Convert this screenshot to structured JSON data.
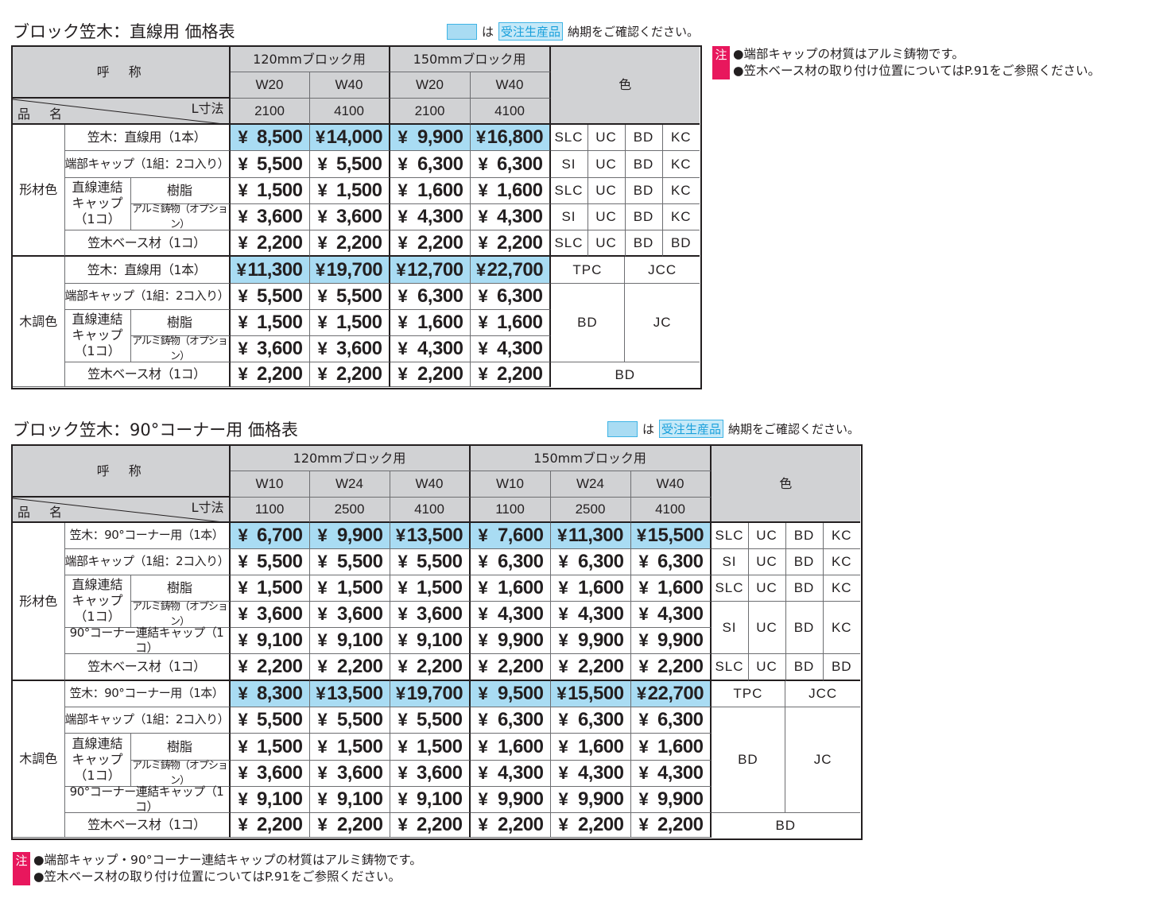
{
  "legend": {
    "is_label": "は",
    "tag_label": "受注生産品",
    "suffix": "納期をご確認ください。",
    "highlight_color": "#a9dcf3",
    "note_mark_color": "#e8175d"
  },
  "table1": {
    "title": "ブロック笠木：直線用 価格表",
    "header": {
      "name_label": "呼　称",
      "product_label": "品　名",
      "length_label": "L寸法",
      "color_label": "色",
      "groups": [
        {
          "label": "120mmブロック用",
          "widths": [
            "W20",
            "W40"
          ],
          "lengths": [
            "2100",
            "4100"
          ]
        },
        {
          "label": "150mmブロック用",
          "widths": [
            "W20",
            "W40"
          ],
          "lengths": [
            "2100",
            "4100"
          ]
        }
      ]
    },
    "sections": [
      {
        "label": "形材色",
        "rows": [
          {
            "name": "笠木：直線用（1本）",
            "prices": [
              "¥",
              "8,500",
              "¥",
              "14,000",
              "¥",
              "9,900",
              "¥",
              "16,800"
            ],
            "colors": [
              "SLC",
              "UC",
              "BD",
              "KC"
            ],
            "highlight": true
          },
          {
            "name": "端部キャップ（1組：2コ入り）",
            "prices": [
              "¥",
              "5,500",
              "¥",
              "5,500",
              "¥",
              "6,300",
              "¥",
              "6,300"
            ],
            "colors": [
              "SI",
              "UC",
              "BD",
              "KC"
            ]
          },
          {
            "name_group": "直線連結\nキャップ\n（1コ）",
            "group_line1": "直線連結",
            "group_line2": "キャップ",
            "group_line3": "（1コ）",
            "name": "樹脂",
            "prices": [
              "¥",
              "1,500",
              "¥",
              "1,500",
              "¥",
              "1,600",
              "¥",
              "1,600"
            ],
            "colors": [
              "SLC",
              "UC",
              "BD",
              "KC"
            ]
          },
          {
            "name": "アルミ鋳物（オプション）",
            "prices": [
              "¥",
              "3,600",
              "¥",
              "3,600",
              "¥",
              "4,300",
              "¥",
              "4,300"
            ],
            "colors": [
              "SI",
              "UC",
              "BD",
              "KC"
            ]
          },
          {
            "name": "笠木ベース材（1コ）",
            "prices": [
              "¥",
              "2,200",
              "¥",
              "2,200",
              "¥",
              "2,200",
              "¥",
              "2,200"
            ],
            "colors": [
              "SLC",
              "UC",
              "BD",
              "BD"
            ]
          }
        ]
      },
      {
        "label": "木調色",
        "rows": [
          {
            "name": "笠木：直線用（1本）",
            "prices": [
              "¥",
              "11,300",
              "¥",
              "19,700",
              "¥",
              "12,700",
              "¥",
              "22,700"
            ],
            "highlight": true
          },
          {
            "name": "端部キャップ（1組：2コ入り）",
            "prices": [
              "¥",
              "5,500",
              "¥",
              "5,500",
              "¥",
              "6,300",
              "¥",
              "6,300"
            ]
          },
          {
            "group_line1": "直線連結",
            "group_line2": "キャップ",
            "group_line3": "（1コ）",
            "name": "樹脂",
            "prices": [
              "¥",
              "1,500",
              "¥",
              "1,500",
              "¥",
              "1,600",
              "¥",
              "1,600"
            ]
          },
          {
            "name": "アルミ鋳物（オプション）",
            "prices": [
              "¥",
              "3,600",
              "¥",
              "3,600",
              "¥",
              "4,300",
              "¥",
              "4,300"
            ]
          },
          {
            "name": "笠木ベース材（1コ）",
            "prices": [
              "¥",
              "2,200",
              "¥",
              "2,200",
              "¥",
              "2,200",
              "¥",
              "2,200"
            ]
          }
        ],
        "colors": {
          "top_left": "TPC",
          "top_right": "JCC",
          "mid_left": "BD",
          "mid_right": "JC",
          "bottom": "BD"
        }
      }
    ],
    "notes": [
      "●端部キャップの材質はアルミ鋳物です。",
      "●笠木ベース材の取り付け位置についてはP.91をご参照ください。"
    ],
    "note_mark": "注"
  },
  "table2": {
    "title": "ブロック笠木：90°コーナー用 価格表",
    "header": {
      "name_label": "呼　称",
      "product_label": "品　名",
      "length_label": "L寸法",
      "color_label": "色",
      "groups": [
        {
          "label": "120mmブロック用",
          "widths": [
            "W10",
            "W24",
            "W40"
          ],
          "lengths": [
            "1100",
            "2500",
            "4100"
          ]
        },
        {
          "label": "150mmブロック用",
          "widths": [
            "W10",
            "W24",
            "W40"
          ],
          "lengths": [
            "1100",
            "2500",
            "4100"
          ]
        }
      ]
    },
    "sections": [
      {
        "label": "形材色",
        "rows": [
          {
            "name": "笠木：90°コーナー用（1本）",
            "prices": [
              "¥",
              "6,700",
              "¥",
              "9,900",
              "¥",
              "13,500",
              "¥",
              "7,600",
              "¥",
              "11,300",
              "¥",
              "15,500"
            ],
            "colors": [
              "SLC",
              "UC",
              "BD",
              "KC"
            ],
            "highlight": true
          },
          {
            "name": "端部キャップ（1組：2コ入り）",
            "prices": [
              "¥",
              "5,500",
              "¥",
              "5,500",
              "¥",
              "5,500",
              "¥",
              "6,300",
              "¥",
              "6,300",
              "¥",
              "6,300"
            ],
            "colors": [
              "SI",
              "UC",
              "BD",
              "KC"
            ]
          },
          {
            "group_line1": "直線連結",
            "group_line2": "キャップ",
            "group_line3": "（1コ）",
            "name": "樹脂",
            "prices": [
              "¥",
              "1,500",
              "¥",
              "1,500",
              "¥",
              "1,500",
              "¥",
              "1,600",
              "¥",
              "1,600",
              "¥",
              "1,600"
            ],
            "colors": [
              "SLC",
              "UC",
              "BD",
              "KC"
            ]
          },
          {
            "name": "アルミ鋳物（オプション）",
            "prices": [
              "¥",
              "3,600",
              "¥",
              "3,600",
              "¥",
              "3,600",
              "¥",
              "4,300",
              "¥",
              "4,300",
              "¥",
              "4,300"
            ],
            "colors": [
              "SI",
              "UC",
              "BD",
              "KC"
            ]
          },
          {
            "name": "90°コーナー連結キャップ（1コ）",
            "prices": [
              "¥",
              "9,100",
              "¥",
              "9,100",
              "¥",
              "9,100",
              "¥",
              "9,900",
              "¥",
              "9,900",
              "¥",
              "9,900"
            ]
          },
          {
            "name": "笠木ベース材（1コ）",
            "prices": [
              "¥",
              "2,200",
              "¥",
              "2,200",
              "¥",
              "2,200",
              "¥",
              "2,200",
              "¥",
              "2,200",
              "¥",
              "2,200"
            ],
            "colors": [
              "SLC",
              "UC",
              "BD",
              "BD"
            ]
          }
        ]
      },
      {
        "label": "木調色",
        "rows": [
          {
            "name": "笠木：90°コーナー用（1本）",
            "prices": [
              "¥",
              "8,300",
              "¥",
              "13,500",
              "¥",
              "19,700",
              "¥",
              "9,500",
              "¥",
              "15,500",
              "¥",
              "22,700"
            ],
            "highlight": true
          },
          {
            "name": "端部キャップ（1組：2コ入り）",
            "prices": [
              "¥",
              "5,500",
              "¥",
              "5,500",
              "¥",
              "5,500",
              "¥",
              "6,300",
              "¥",
              "6,300",
              "¥",
              "6,300"
            ]
          },
          {
            "group_line1": "直線連結",
            "group_line2": "キャップ",
            "group_line3": "（1コ）",
            "name": "樹脂",
            "prices": [
              "¥",
              "1,500",
              "¥",
              "1,500",
              "¥",
              "1,500",
              "¥",
              "1,600",
              "¥",
              "1,600",
              "¥",
              "1,600"
            ]
          },
          {
            "name": "アルミ鋳物（オプション）",
            "prices": [
              "¥",
              "3,600",
              "¥",
              "3,600",
              "¥",
              "3,600",
              "¥",
              "4,300",
              "¥",
              "4,300",
              "¥",
              "4,300"
            ]
          },
          {
            "name": "90°コーナー連結キャップ（1コ）",
            "prices": [
              "¥",
              "9,100",
              "¥",
              "9,100",
              "¥",
              "9,100",
              "¥",
              "9,900",
              "¥",
              "9,900",
              "¥",
              "9,900"
            ]
          },
          {
            "name": "笠木ベース材（1コ）",
            "prices": [
              "¥",
              "2,200",
              "¥",
              "2,200",
              "¥",
              "2,200",
              "¥",
              "2,200",
              "¥",
              "2,200",
              "¥",
              "2,200"
            ]
          }
        ],
        "colors": {
          "top_left": "TPC",
          "top_right": "JCC",
          "mid_left": "BD",
          "mid_right": "JC",
          "bottom": "BD"
        }
      }
    ],
    "notes": [
      "●端部キャップ・90°コーナー連結キャップの材質はアルミ鋳物です。",
      "●笠木ベース材の取り付け位置についてはP.91をご参照ください。"
    ],
    "note_mark": "注"
  }
}
